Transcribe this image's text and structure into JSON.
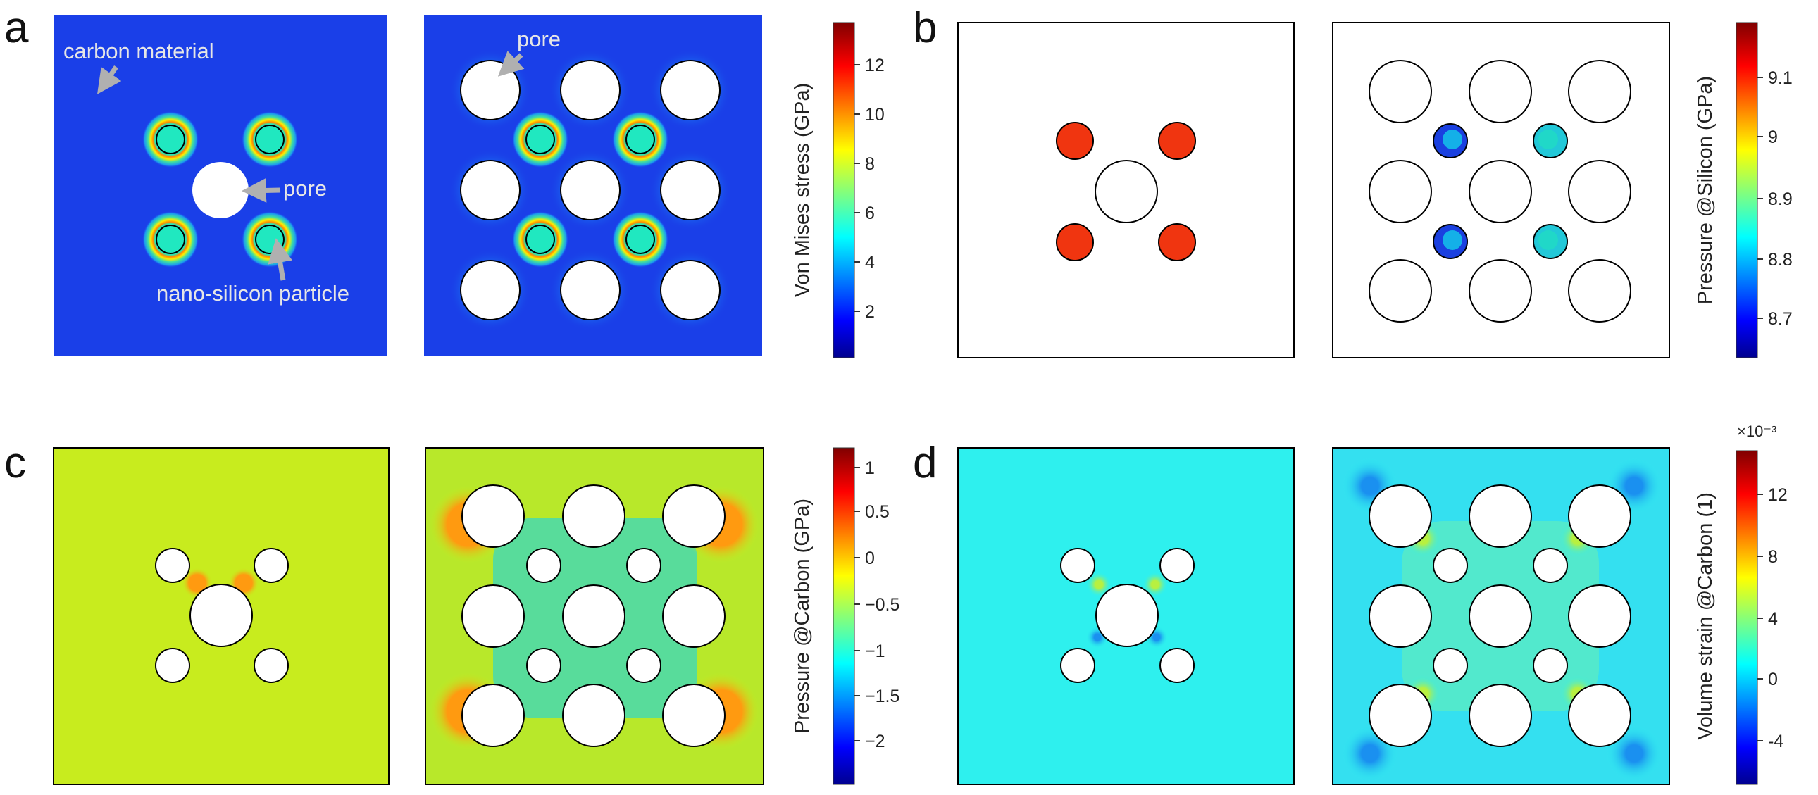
{
  "panels": {
    "a": {
      "letter": "a",
      "annotations": {
        "carbon": "carbon material",
        "pore_left": "pore",
        "pore_right": "pore",
        "particle": "nano-silicon particle"
      },
      "colorbar": {
        "label": "Von Mises stress (GPa)",
        "ticks": [
          "12",
          "10",
          "8",
          "6",
          "4",
          "2"
        ]
      }
    },
    "b": {
      "letter": "b",
      "colorbar": {
        "label": "Pressure @Silicon (GPa)",
        "ticks": [
          "9.1",
          "9",
          "8.9",
          "8.8",
          "8.7"
        ]
      }
    },
    "c": {
      "letter": "c",
      "colorbar": {
        "label": "Pressure @Carbon (GPa)",
        "ticks": [
          "1",
          "0.5",
          "0",
          "−0.5",
          "−1",
          "−1.5",
          "−2"
        ]
      }
    },
    "d": {
      "letter": "d",
      "colorbar": {
        "label": "Volume strain @Carbon (1)",
        "multiplier": "×10⁻³",
        "ticks": [
          "12",
          "8",
          "4",
          "0",
          "-4"
        ]
      }
    }
  },
  "colors": {
    "jet_blue": "#0000ff",
    "field_a": "#1a3fe8",
    "field_c": "#c8ec1e",
    "field_d": "#2ef0ee",
    "silicon_b_left": "#f03510",
    "silicon_b_right_low": "#1a40e0",
    "annotation_arrow": "#b0b0b0"
  }
}
